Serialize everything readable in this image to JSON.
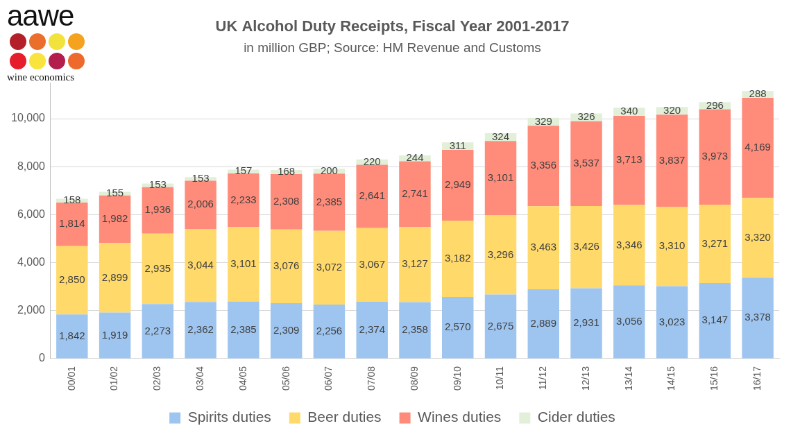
{
  "chart_data": {
    "type": "bar",
    "title": "UK Alcohol Duty Receipts, Fiscal Year 2001-2017",
    "subtitle": "in million GBP; Source: HM Revenue and Customs",
    "annotations": [
      "aawe",
      "wine economics"
    ],
    "categories": [
      "00/01",
      "01/02",
      "02/03",
      "03/04",
      "04/05",
      "05/06",
      "06/07",
      "07/08",
      "08/09",
      "09/10",
      "10/11",
      "11/12",
      "12/13",
      "13/14",
      "14/15",
      "15/16",
      "16/17"
    ],
    "series": [
      {
        "name": "Spirits duties",
        "color": "#9ec5f0",
        "values": [
          1842,
          1919,
          2273,
          2362,
          2385,
          2309,
          2256,
          2374,
          2358,
          2570,
          2675,
          2889,
          2931,
          3056,
          3023,
          3147,
          3378
        ],
        "value_labels": [
          "1,842",
          "1,919",
          "2,273",
          "2,362",
          "2,385",
          "2,309",
          "2,256",
          "2,374",
          "2,358",
          "2,570",
          "2,675",
          "2,889",
          "2,931",
          "3,056",
          "3,023",
          "3,147",
          "3,378"
        ]
      },
      {
        "name": "Beer duties",
        "color": "#ffd96a",
        "values": [
          2850,
          2899,
          2935,
          3044,
          3101,
          3076,
          3072,
          3067,
          3127,
          3182,
          3296,
          3463,
          3426,
          3346,
          3310,
          3271,
          3320
        ],
        "value_labels": [
          "2,850",
          "2,899",
          "2,935",
          "3,044",
          "3,101",
          "3,076",
          "3,072",
          "3,067",
          "3,127",
          "3,182",
          "3,296",
          "3,463",
          "3,426",
          "3,346",
          "3,310",
          "3,271",
          "3,320"
        ]
      },
      {
        "name": "Wines duties",
        "color": "#ff8c7a",
        "values": [
          1814,
          1982,
          1936,
          2006,
          2233,
          2308,
          2385,
          2641,
          2741,
          2949,
          3101,
          3356,
          3537,
          3713,
          3837,
          3973,
          4169
        ],
        "value_labels": [
          "1,814",
          "1,982",
          "1,936",
          "2,006",
          "2,233",
          "2,308",
          "2,385",
          "2,641",
          "2,741",
          "2,949",
          "3,101",
          "3,356",
          "3,537",
          "3,713",
          "3,837",
          "3,973",
          "4,169"
        ]
      },
      {
        "name": "Cider duties",
        "color": "#e2efd9",
        "values": [
          158,
          155,
          153,
          153,
          157,
          168,
          200,
          220,
          244,
          311,
          324,
          329,
          326,
          340,
          320,
          296,
          288
        ]
      }
    ],
    "ylim": [
      0,
      11500
    ],
    "yticks": [
      0,
      {
        "value": 2000,
        "label": "2,000"
      },
      {
        "value": 4000,
        "label": "4,000"
      },
      {
        "value": 6000,
        "label": "6,000"
      },
      {
        "value": 8000,
        "label": "8,000"
      },
      {
        "value": 10000,
        "label": "10,000"
      }
    ],
    "grid": true,
    "stacked": true,
    "data_labels": true,
    "legend": "bottom"
  }
}
